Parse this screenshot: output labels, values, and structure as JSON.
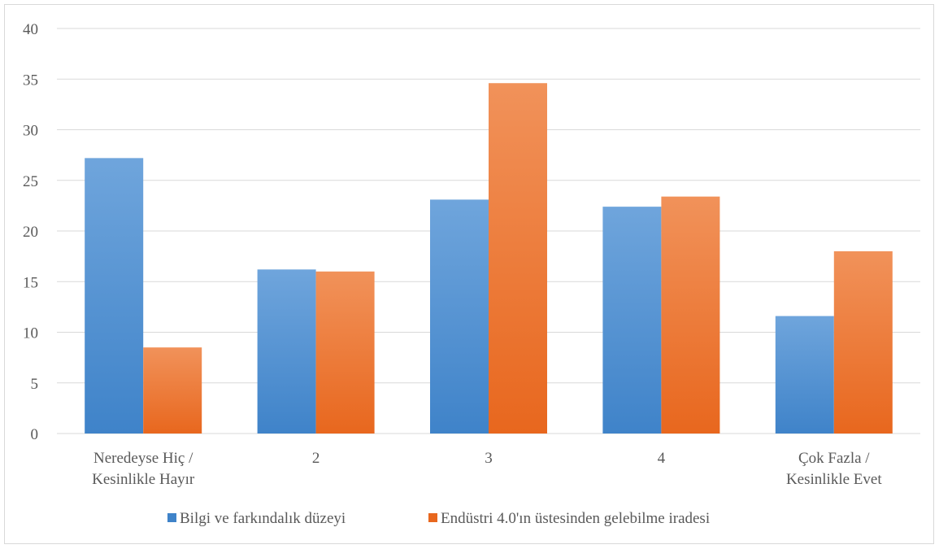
{
  "chart_data": {
    "type": "bar",
    "categories": [
      [
        "Neredeyse Hiç /",
        "Kesinlikle Hayır"
      ],
      [
        "2"
      ],
      [
        "3"
      ],
      [
        "4"
      ],
      [
        "Çok Fazla /",
        "Kesinlikle Evet"
      ]
    ],
    "series": [
      {
        "name": "Bilgi ve farkındalık düzeyi",
        "values": [
          27.2,
          16.2,
          23.1,
          22.4,
          11.6
        ],
        "color_top": "#6fa5dc",
        "color_bottom": "#3f83c9"
      },
      {
        "name": "Endüstri 4.0'ın üstesinden gelebilme iradesi",
        "values": [
          8.5,
          16.0,
          34.6,
          23.4,
          18.0
        ],
        "color_top": "#f1925a",
        "color_bottom": "#e8671e"
      }
    ],
    "title": "",
    "xlabel": "",
    "ylabel": "",
    "ylim": [
      0,
      40
    ],
    "yticks": [
      0,
      5,
      10,
      15,
      20,
      25,
      30,
      35,
      40
    ],
    "grid": true,
    "legend_position": "bottom",
    "gridline_color": "#d9d9d9"
  }
}
